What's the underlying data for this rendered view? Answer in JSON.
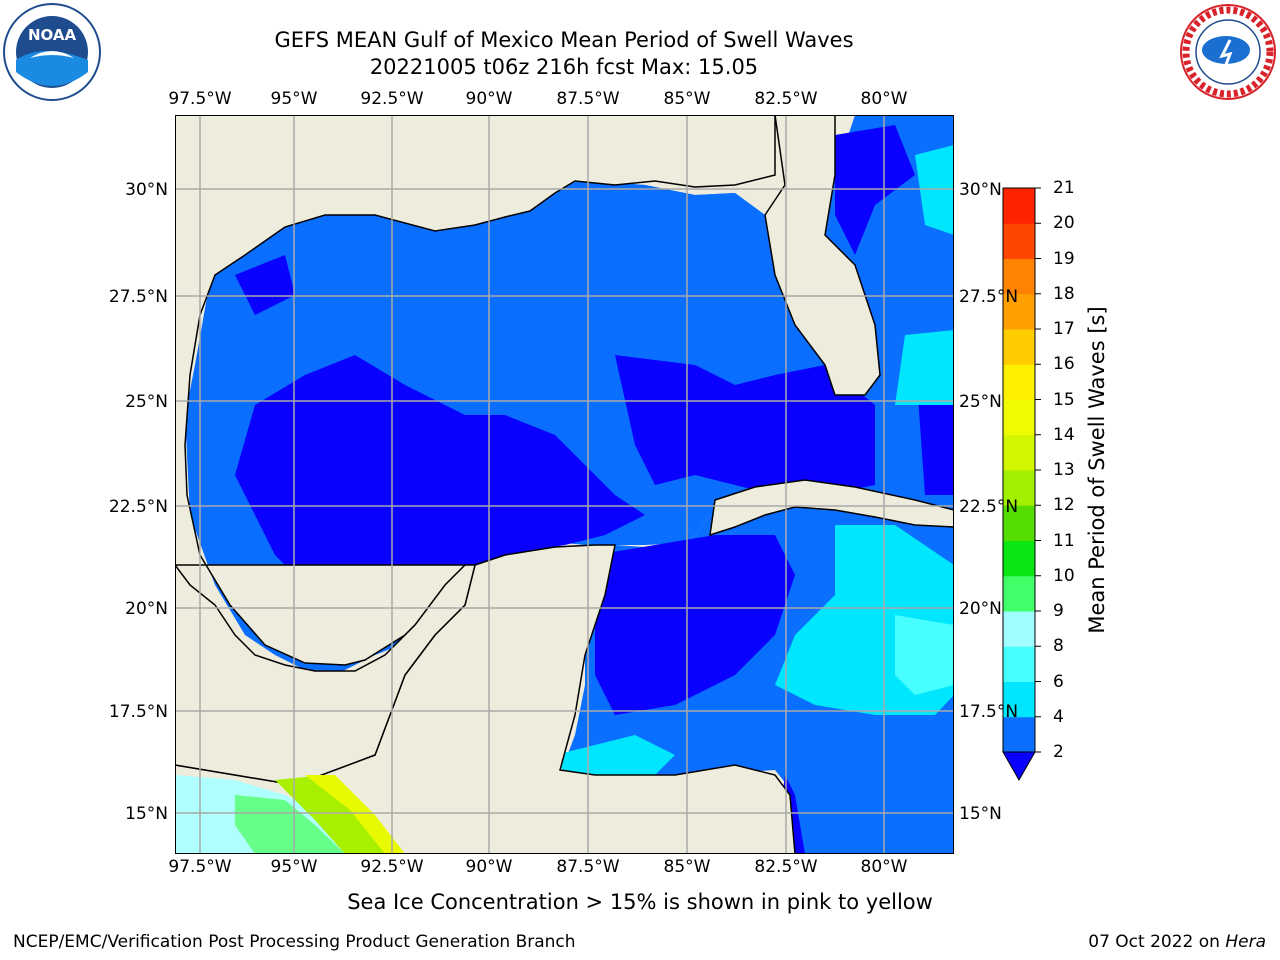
{
  "title_line1": "GEFS MEAN Gulf of Mexico Mean Period of Swell Waves",
  "title_line2": "20221005 t06z 216h fcst   Max: 15.05",
  "logos": {
    "left": "noaa-logo",
    "right": "nws-logo"
  },
  "lon_ticks": [
    "97.5°W",
    "95°W",
    "92.5°W",
    "90°W",
    "87.5°W",
    "85°W",
    "82.5°W",
    "80°W"
  ],
  "lat_ticks_left": [
    "30°N",
    "27.5°N",
    "25°N",
    "22.5°N",
    "20°N",
    "17.5°N",
    "15°N"
  ],
  "lat_ticks_right": [
    "30°N",
    "27.5°N",
    "25°N",
    "22.5°N",
    "20°N",
    "17.5°N",
    "15°N"
  ],
  "colorbar": {
    "label": "Mean Period of Swell Waves [s]",
    "levels": [
      "2",
      "4",
      "6",
      "8",
      "9",
      "10",
      "11",
      "12",
      "13",
      "14",
      "15",
      "16",
      "17",
      "18",
      "19",
      "20",
      "21"
    ],
    "colors": [
      "#0a00ff",
      "#0a6eff",
      "#00e6ff",
      "#46ffff",
      "#9ffcff",
      "#41ff69",
      "#0ae612",
      "#55dc00",
      "#a0f000",
      "#d2f500",
      "#f0fa00",
      "#fff000",
      "#ffcc00",
      "#ffa000",
      "#ff8200",
      "#ff4600",
      "#ff2300",
      "#ff0000"
    ],
    "extend": "min"
  },
  "map": {
    "land_color": "#eeecdc",
    "sea_ice_colors": [
      "#afffff",
      "#66ff8a",
      "#a8f000",
      "#e8fa00"
    ]
  },
  "note": "Sea Ice Concentration > 15% is shown in pink to yellow",
  "footer_left": "NCEP/EMC/Verification Post Processing Product Generation Branch",
  "footer_right_date": "07 Oct 2022 on ",
  "footer_right_host": "Hera"
}
